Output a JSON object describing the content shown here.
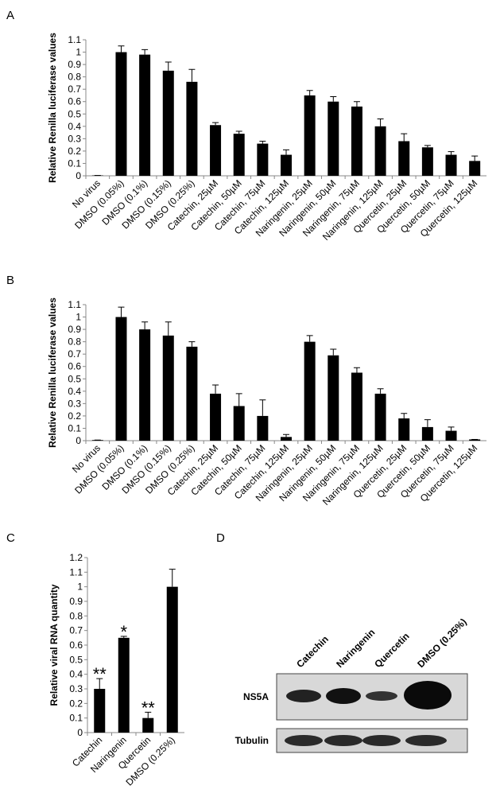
{
  "chart_data": [
    {
      "type": "bar",
      "panel_label": "A",
      "y_label": "Relative Renilla luciferase values",
      "color": "#000000",
      "categories": [
        "No virus",
        "DMSO (0.05%)",
        "DMSO (0.1%)",
        "DMSO (0.15%)",
        "DMSO (0.25%)",
        "Catechin, 25µM",
        "Catechin, 50µM",
        "Catechin, 75µM",
        "Catechin, 125µM",
        "Naringenin, 25µM",
        "Naringenin, 50µM",
        "Naringenin, 75µM",
        "Naringenin, 125µM",
        "Quercetin, 25µM",
        "Quercetin, 50µM",
        "Quercetin, 75µM",
        "Quercetin, 125µM"
      ],
      "values": [
        0.003,
        1.0,
        0.98,
        0.85,
        0.76,
        0.41,
        0.34,
        0.26,
        0.17,
        0.65,
        0.6,
        0.56,
        0.4,
        0.28,
        0.23,
        0.17,
        0.12
      ],
      "errors": [
        0,
        0.05,
        0.04,
        0.07,
        0.1,
        0.02,
        0.02,
        0.02,
        0.04,
        0.04,
        0.04,
        0.04,
        0.06,
        0.06,
        0.015,
        0.025,
        0.04
      ],
      "ylim": [
        0,
        1.1
      ],
      "yticks": [
        0,
        0.1,
        0.2,
        0.3,
        0.4,
        0.5,
        0.6,
        0.7,
        0.8,
        0.9,
        1,
        1.1
      ]
    },
    {
      "type": "bar",
      "panel_label": "B",
      "y_label": "Relative Renilla luciferase values",
      "color": "#000000",
      "categories": [
        "No virus",
        "DMSO (0.05%)",
        "DMSO (0.1%)",
        "DMSO (0.15%)",
        "DMSO (0.25%)",
        "Catechin, 25µM",
        "Catechin, 50µM",
        "Catechin, 75µM",
        "Catechin, 125µM",
        "Naringenin, 25µM",
        "Naringenin, 50µM",
        "Naringenin, 75µM",
        "Naringenin, 125µM",
        "Quercetin, 25µM",
        "Quercetin, 50µM",
        "Quercetin, 75µM",
        "Quercetin, 125µM"
      ],
      "values": [
        0.005,
        1.0,
        0.9,
        0.85,
        0.76,
        0.38,
        0.28,
        0.2,
        0.03,
        0.8,
        0.69,
        0.55,
        0.38,
        0.18,
        0.11,
        0.08,
        0.01
      ],
      "errors": [
        0,
        0.08,
        0.06,
        0.11,
        0.04,
        0.07,
        0.1,
        0.13,
        0.02,
        0.05,
        0.05,
        0.04,
        0.04,
        0.04,
        0.06,
        0.03,
        0
      ],
      "ylim": [
        0,
        1.1
      ],
      "yticks": [
        0,
        0.1,
        0.2,
        0.3,
        0.4,
        0.5,
        0.6,
        0.7,
        0.8,
        0.9,
        1,
        1.1
      ]
    },
    {
      "type": "bar",
      "panel_label": "C",
      "y_label": "Relative viral RNA quantity",
      "color": "#000000",
      "categories": [
        "Catechin",
        "Naringenin",
        "Quercetin",
        "DMSO (0.25%)"
      ],
      "values": [
        0.3,
        0.65,
        0.1,
        1.0
      ],
      "errors": [
        0.07,
        0.01,
        0.04,
        0.12
      ],
      "significance": [
        "**",
        "*",
        "**",
        null
      ],
      "ylim": [
        0,
        1.2
      ],
      "yticks": [
        0,
        0.1,
        0.2,
        0.3,
        0.4,
        0.5,
        0.6,
        0.7,
        0.8,
        0.9,
        1,
        1.1,
        1.2
      ]
    }
  ],
  "blot": {
    "panel_label": "D",
    "lanes": [
      "Catechin",
      "Naringenin",
      "Quercetin",
      "DMSO (0.25%)"
    ],
    "rows": [
      "NS5A",
      "Tubulin"
    ]
  }
}
